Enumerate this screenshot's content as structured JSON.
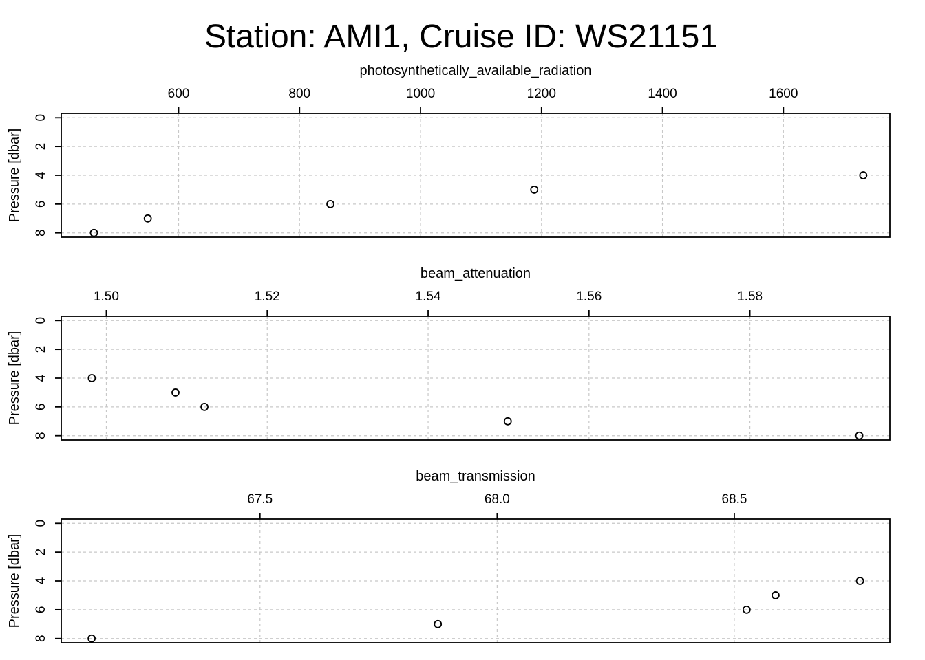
{
  "title": "Station: AMI1, Cruise ID: WS21151",
  "chart_data": [
    {
      "type": "scatter",
      "xlabel": "photosynthetically_available_radiation",
      "ylabel": "Pressure [dbar]",
      "xlim": [
        406,
        1776
      ],
      "ylim": [
        8.3,
        -0.3
      ],
      "x_ticks": [
        600,
        800,
        1000,
        1200,
        1400,
        1600
      ],
      "x_tick_labels": [
        "600",
        "800",
        "1000",
        "1200",
        "1400",
        "1600"
      ],
      "y_ticks": [
        0,
        2,
        4,
        6,
        8
      ],
      "y_tick_labels": [
        "0",
        "2",
        "4",
        "6",
        "8"
      ],
      "grid": true,
      "x": [
        1732,
        1188,
        851,
        549,
        460
      ],
      "y": [
        4,
        5,
        6,
        7,
        8
      ]
    },
    {
      "type": "scatter",
      "xlabel": "beam_attenuation",
      "ylabel": "Pressure [dbar]",
      "xlim": [
        1.4944,
        1.5974
      ],
      "ylim": [
        8.3,
        -0.3
      ],
      "x_ticks": [
        1.5,
        1.52,
        1.54,
        1.56,
        1.58
      ],
      "x_tick_labels": [
        "1.50",
        "1.52",
        "1.54",
        "1.56",
        "1.58"
      ],
      "y_ticks": [
        0,
        2,
        4,
        6,
        8
      ],
      "y_tick_labels": [
        "0",
        "2",
        "4",
        "6",
        "8"
      ],
      "grid": true,
      "x": [
        1.4982,
        1.5086,
        1.5122,
        1.5499,
        1.5936
      ],
      "y": [
        4,
        5,
        6,
        7,
        8
      ]
    },
    {
      "type": "scatter",
      "xlabel": "beam_transmission",
      "ylabel": "Pressure [dbar]",
      "xlim": [
        67.081,
        68.828
      ],
      "ylim": [
        8.3,
        -0.3
      ],
      "x_ticks": [
        67.5,
        68.0,
        68.5
      ],
      "x_tick_labels": [
        "67.5",
        "68.0",
        "68.5"
      ],
      "y_ticks": [
        0,
        2,
        4,
        6,
        8
      ],
      "y_tick_labels": [
        "0",
        "2",
        "4",
        "6",
        "8"
      ],
      "grid": true,
      "x": [
        68.765,
        68.587,
        68.526,
        67.875,
        67.145
      ],
      "y": [
        4,
        5,
        6,
        7,
        8
      ]
    }
  ]
}
